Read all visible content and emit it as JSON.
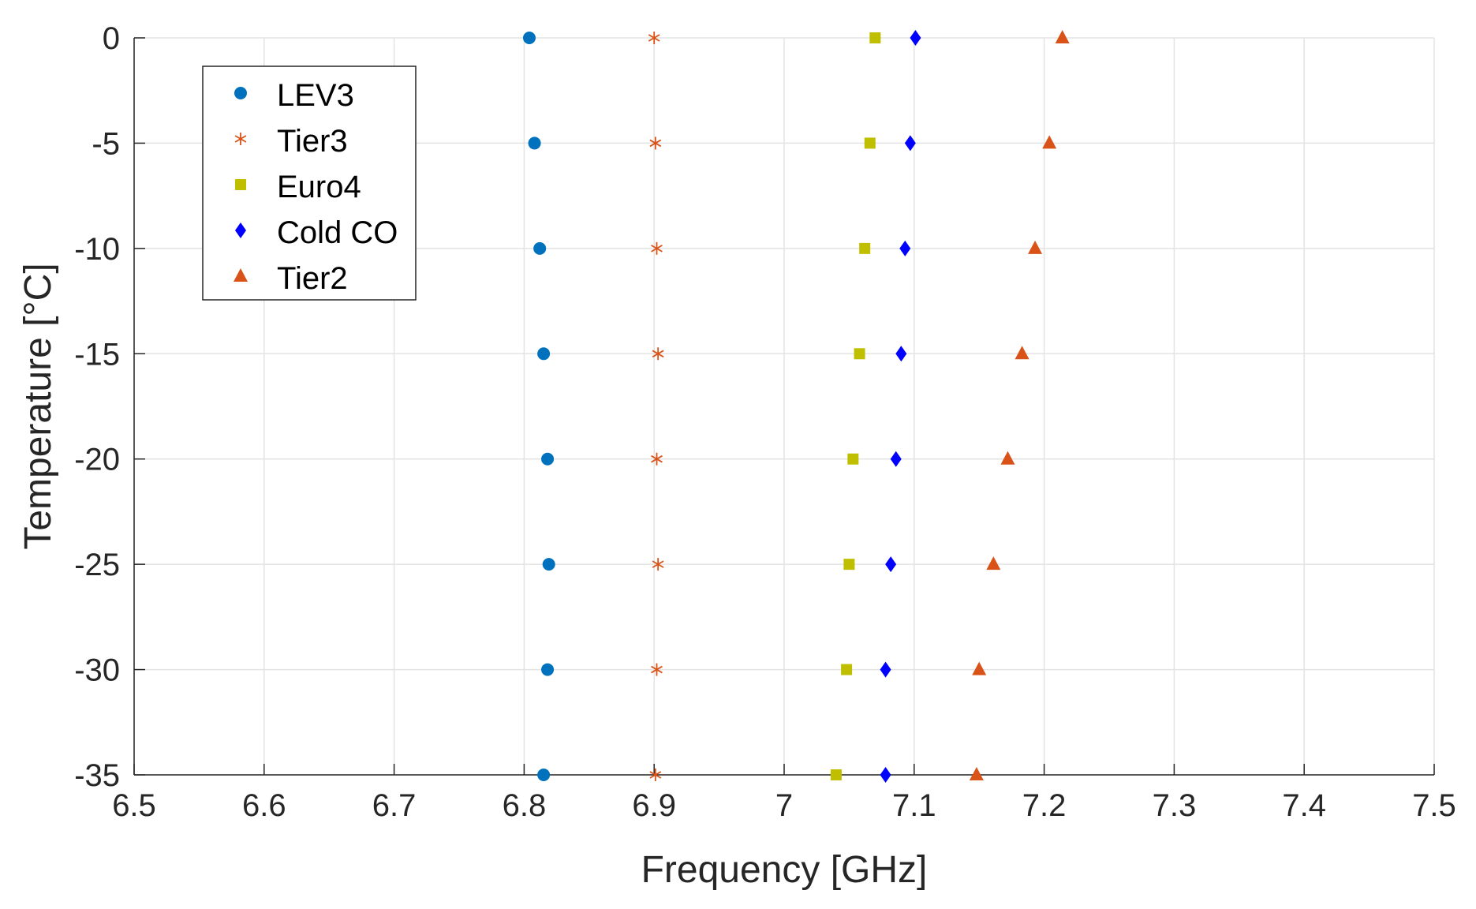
{
  "chart_data": {
    "type": "scatter",
    "title": "",
    "xlabel": "Frequency [GHz]",
    "ylabel": "Temperature [°C]",
    "xlim": [
      6.5,
      7.5
    ],
    "ylim": [
      -35,
      0
    ],
    "xticks": [
      6.5,
      6.6,
      6.7,
      6.8,
      6.9,
      7.0,
      7.1,
      7.2,
      7.3,
      7.4,
      7.5
    ],
    "xtick_labels": [
      "6.5",
      "6.6",
      "6.7",
      "6.8",
      "6.9",
      "7",
      "7.1",
      "7.2",
      "7.3",
      "7.4",
      "7.5"
    ],
    "yticks": [
      0,
      -5,
      -10,
      -15,
      -20,
      -25,
      -30,
      -35
    ],
    "ytick_labels": [
      "0",
      "-5",
      "-10",
      "-15",
      "-20",
      "-25",
      "-30",
      "-35"
    ],
    "grid": true,
    "legend_position": "top-left",
    "y": [
      0,
      -5,
      -10,
      -15,
      -20,
      -25,
      -30,
      -35
    ],
    "series": [
      {
        "name": "LEV3",
        "marker": "circle",
        "color": "#0072BD",
        "x": [
          6.804,
          6.808,
          6.812,
          6.815,
          6.818,
          6.819,
          6.818,
          6.815
        ]
      },
      {
        "name": "Tier3",
        "marker": "asterisk",
        "color": "#D95319",
        "x": [
          6.9,
          6.901,
          6.902,
          6.903,
          6.902,
          6.903,
          6.902,
          6.901
        ]
      },
      {
        "name": "Euro4",
        "marker": "square",
        "color": "#BFBF00",
        "x": [
          7.07,
          7.066,
          7.062,
          7.058,
          7.053,
          7.05,
          7.048,
          7.04
        ]
      },
      {
        "name": "Cold CO",
        "marker": "diamond",
        "color": "#0000FF",
        "x": [
          7.101,
          7.097,
          7.093,
          7.09,
          7.086,
          7.082,
          7.078,
          7.078
        ]
      },
      {
        "name": "Tier2",
        "marker": "triangle",
        "color": "#D95319",
        "x": [
          7.214,
          7.204,
          7.193,
          7.183,
          7.172,
          7.161,
          7.15,
          7.148
        ]
      }
    ]
  }
}
